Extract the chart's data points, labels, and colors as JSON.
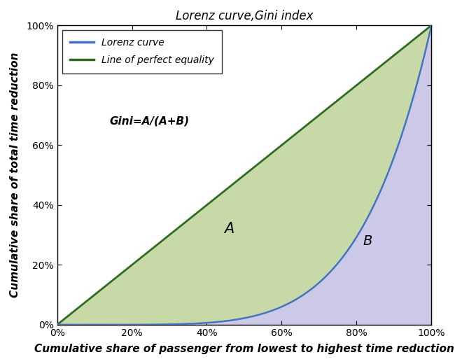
{
  "title": "Lorenz curve,Gini index",
  "xlabel": "Cumulative share of passenger from lowest to highest time reduction",
  "ylabel": "Cumulative share of total time reduction",
  "lorenz_color": "#4472C4",
  "equality_color": "#2E6B1E",
  "fill_A_color": "#c8d9a8",
  "fill_A_alpha": 1.0,
  "fill_B_color": "#ccc8e8",
  "fill_B_alpha": 1.0,
  "gini_text": "Gini=A/(A+B)",
  "label_A": "A",
  "label_B": "B",
  "legend_lorenz": "Lorenz curve",
  "legend_equality": "Line of perfect equality",
  "xlim": [
    0,
    1
  ],
  "ylim": [
    0,
    1
  ],
  "xticks": [
    0,
    0.2,
    0.4,
    0.6,
    0.8,
    1.0
  ],
  "yticks": [
    0,
    0.2,
    0.4,
    0.6,
    0.8,
    1.0
  ],
  "lorenz_power": 5.5,
  "background_color": "#ffffff",
  "title_fontsize": 12,
  "label_fontsize": 11,
  "tick_fontsize": 10
}
